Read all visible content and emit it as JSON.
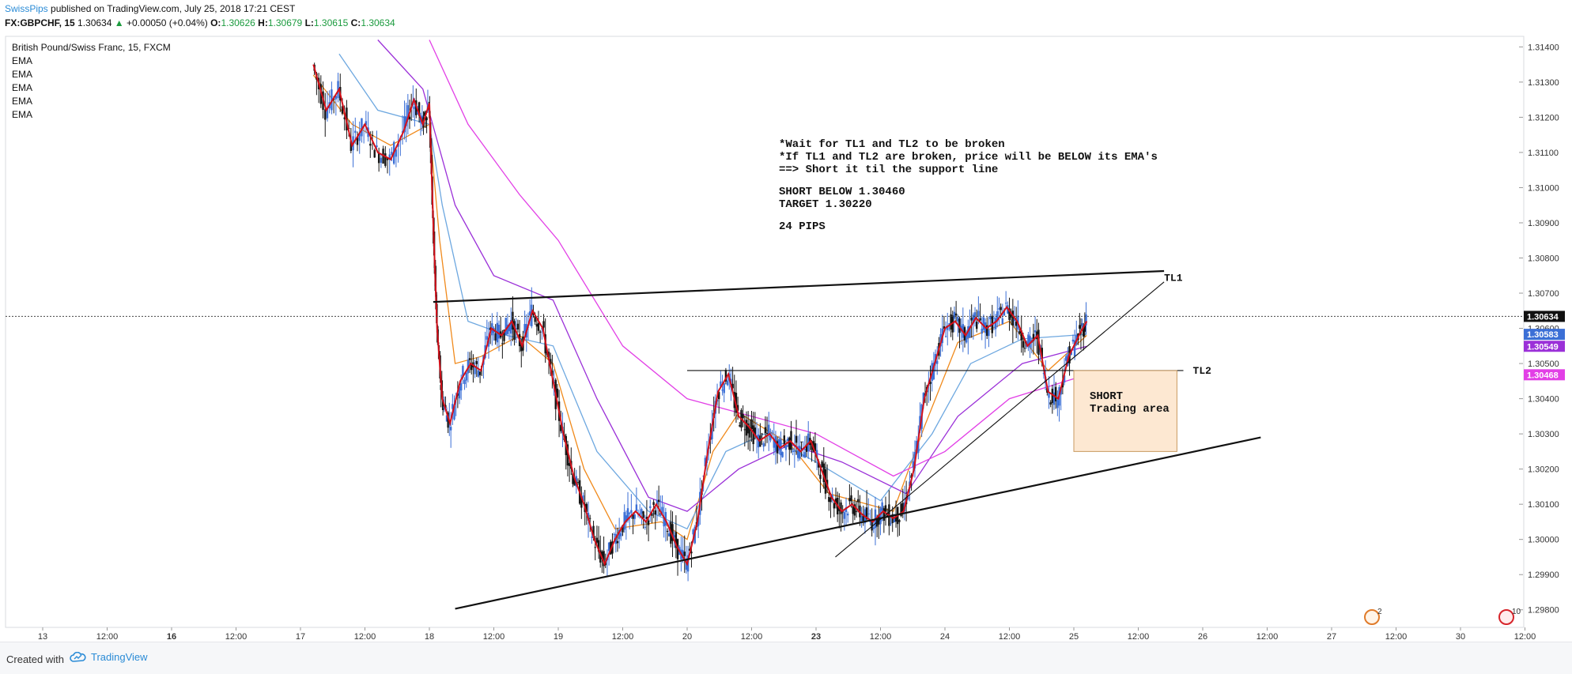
{
  "header": {
    "author": "SwissPips",
    "published_text": "published on TradingView.com, July 25, 2018 17:21 CEST",
    "symbol": "FX:GBPCHF, 15",
    "last_price": "1.30634",
    "change_arrow": "▲",
    "change": "+0.00050 (+0.04%)",
    "open_label": "O:",
    "open": "1.30626",
    "high_label": "H:",
    "high": "1.30679",
    "low_label": "L:",
    "low": "1.30615",
    "close_label": "C:",
    "close": "1.30634"
  },
  "legend": {
    "title": "British Pound/Swiss Franc, 15, FXCM",
    "indicators": [
      "EMA",
      "EMA",
      "EMA",
      "EMA",
      "EMA"
    ]
  },
  "annotation": {
    "lines": [
      "*Wait for TL1 and TL2 to be broken",
      "*If TL1 and TL2 are broken, price will be BELOW its EMA's",
      "==> Short it til the support line",
      "",
      "SHORT BELOW 1.30460",
      "TARGET 1.30220",
      "",
      "24 PIPS"
    ],
    "zone_label_1": "SHORT",
    "zone_label_2": "Trading area",
    "tl1_label": "TL1",
    "tl2_label": "TL2"
  },
  "footer": {
    "created_with": "Created with",
    "brand": "TradingView",
    "badge_count_1": "2",
    "badge_count_2": "10"
  },
  "colors": {
    "bull": "#3b6fd6",
    "bear": "#151515",
    "price_line": "#d4101a",
    "ema_orange": "#f08a1c",
    "ema_blue": "#6ea8e0",
    "ema_purple": "#9b30d8",
    "ema_magenta": "#e23fe6",
    "zone_fill": "#fde8d2",
    "zone_border": "#c99a60"
  },
  "chart_data": {
    "type": "candlestick",
    "symbol": "GBPCHF",
    "timeframe": "15",
    "x_tick_labels": [
      "13",
      "12:00",
      "16",
      "12:00",
      "17",
      "12:00",
      "18",
      "12:00",
      "19",
      "12:00",
      "20",
      "12:00",
      "23",
      "12:00",
      "24",
      "12:00",
      "25",
      "12:00",
      "26",
      "12:00",
      "27",
      "12:00",
      "30",
      "12:00"
    ],
    "x_tick_bold": [
      false,
      false,
      true,
      false,
      false,
      false,
      false,
      false,
      false,
      false,
      false,
      false,
      true,
      false,
      false,
      false,
      false,
      false,
      false,
      false,
      false,
      false,
      false,
      false
    ],
    "ylim": [
      1.2975,
      1.3143
    ],
    "y_ticks": [
      1.314,
      1.313,
      1.312,
      1.311,
      1.31,
      1.309,
      1.308,
      1.307,
      1.306,
      1.305,
      1.304,
      1.303,
      1.302,
      1.301,
      1.3,
      1.299,
      1.298
    ],
    "y_tick_labels": [
      "1.31400",
      "1.31300",
      "1.31200",
      "1.31100",
      "1.31000",
      "1.30900",
      "1.30800",
      "1.30700",
      "1.30600",
      "1.30500",
      "1.30400",
      "1.30300",
      "1.30200",
      "1.30100",
      "1.30000",
      "1.29900",
      "1.29800"
    ],
    "price_tags": [
      {
        "value": 1.30634,
        "label": "1.30634",
        "color": "#111111"
      },
      {
        "value": 1.30583,
        "label": "1.30583",
        "color": "#3b6fd6"
      },
      {
        "value": 1.30549,
        "label": "1.30549",
        "color": "#9b30d8"
      },
      {
        "value": 1.30468,
        "label": "1.30468",
        "color": "#e23fe6"
      }
    ],
    "close_series": [
      {
        "x": 17.1,
        "c": 1.3135
      },
      {
        "x": 17.2,
        "c": 1.3122
      },
      {
        "x": 17.3,
        "c": 1.3128
      },
      {
        "x": 17.4,
        "c": 1.3112
      },
      {
        "x": 17.5,
        "c": 1.3118
      },
      {
        "x": 17.6,
        "c": 1.311
      },
      {
        "x": 17.7,
        "c": 1.3108
      },
      {
        "x": 17.8,
        "c": 1.3116
      },
      {
        "x": 17.88,
        "c": 1.3125
      },
      {
        "x": 17.95,
        "c": 1.3118
      },
      {
        "x": 18.0,
        "c": 1.3124
      },
      {
        "x": 18.03,
        "c": 1.309
      },
      {
        "x": 18.06,
        "c": 1.306
      },
      {
        "x": 18.1,
        "c": 1.304
      },
      {
        "x": 18.16,
        "c": 1.3033
      },
      {
        "x": 18.24,
        "c": 1.3045
      },
      {
        "x": 18.32,
        "c": 1.305
      },
      {
        "x": 18.4,
        "c": 1.3048
      },
      {
        "x": 18.48,
        "c": 1.306
      },
      {
        "x": 18.56,
        "c": 1.3058
      },
      {
        "x": 18.64,
        "c": 1.3062
      },
      {
        "x": 18.72,
        "c": 1.3055
      },
      {
        "x": 18.8,
        "c": 1.3065
      },
      {
        "x": 18.88,
        "c": 1.306
      },
      {
        "x": 18.96,
        "c": 1.3045
      },
      {
        "x": 19.04,
        "c": 1.303
      },
      {
        "x": 19.12,
        "c": 1.3018
      },
      {
        "x": 19.2,
        "c": 1.301
      },
      {
        "x": 19.28,
        "c": 1.3
      },
      {
        "x": 19.36,
        "c": 1.2993
      },
      {
        "x": 19.44,
        "c": 1.3
      },
      {
        "x": 19.52,
        "c": 1.3005
      },
      {
        "x": 19.6,
        "c": 1.3008
      },
      {
        "x": 19.68,
        "c": 1.3005
      },
      {
        "x": 19.76,
        "c": 1.301
      },
      {
        "x": 19.84,
        "c": 1.3005
      },
      {
        "x": 19.92,
        "c": 1.2998
      },
      {
        "x": 20.0,
        "c": 1.2993
      },
      {
        "x": 20.08,
        "c": 1.3005
      },
      {
        "x": 20.16,
        "c": 1.3025
      },
      {
        "x": 20.24,
        "c": 1.3042
      },
      {
        "x": 20.32,
        "c": 1.3047
      },
      {
        "x": 20.4,
        "c": 1.3035
      },
      {
        "x": 20.48,
        "c": 1.3032
      },
      {
        "x": 20.56,
        "c": 1.3028
      },
      {
        "x": 20.64,
        "c": 1.303
      },
      {
        "x": 20.72,
        "c": 1.3026
      },
      {
        "x": 20.8,
        "c": 1.3028
      },
      {
        "x": 20.88,
        "c": 1.3025
      },
      {
        "x": 20.96,
        "c": 1.3028
      },
      {
        "x": 21.04,
        "c": 1.302
      },
      {
        "x": 21.12,
        "c": 1.3012
      },
      {
        "x": 21.2,
        "c": 1.3008
      },
      {
        "x": 21.28,
        "c": 1.301
      },
      {
        "x": 21.36,
        "c": 1.3007
      },
      {
        "x": 21.44,
        "c": 1.3005
      },
      {
        "x": 21.52,
        "c": 1.3008
      },
      {
        "x": 21.6,
        "c": 1.3006
      },
      {
        "x": 21.68,
        "c": 1.3008
      },
      {
        "x": 21.76,
        "c": 1.302
      },
      {
        "x": 21.84,
        "c": 1.304
      },
      {
        "x": 21.92,
        "c": 1.305
      },
      {
        "x": 22.0,
        "c": 1.306
      },
      {
        "x": 22.08,
        "c": 1.3062
      },
      {
        "x": 22.16,
        "c": 1.3058
      },
      {
        "x": 22.24,
        "c": 1.3063
      },
      {
        "x": 22.32,
        "c": 1.306
      },
      {
        "x": 22.4,
        "c": 1.3062
      },
      {
        "x": 22.48,
        "c": 1.3066
      },
      {
        "x": 22.56,
        "c": 1.3062
      },
      {
        "x": 22.64,
        "c": 1.3055
      },
      {
        "x": 22.72,
        "c": 1.3058
      },
      {
        "x": 22.8,
        "c": 1.3042
      },
      {
        "x": 22.88,
        "c": 1.304
      },
      {
        "x": 22.96,
        "c": 1.3052
      },
      {
        "x": 23.04,
        "c": 1.3058
      },
      {
        "x": 23.1,
        "c": 1.3062
      }
    ],
    "ema_series": [
      {
        "name": "",
        "color": "#f08a1c",
        "points": [
          {
            "x": 17.1,
            "y": 1.3132
          },
          {
            "x": 17.4,
            "y": 1.3118
          },
          {
            "x": 17.7,
            "y": 1.3112
          },
          {
            "x": 18.0,
            "y": 1.3118
          },
          {
            "x": 18.08,
            "y": 1.3085
          },
          {
            "x": 18.2,
            "y": 1.305
          },
          {
            "x": 18.4,
            "y": 1.3052
          },
          {
            "x": 18.7,
            "y": 1.3058
          },
          {
            "x": 18.96,
            "y": 1.305
          },
          {
            "x": 19.2,
            "y": 1.302
          },
          {
            "x": 19.44,
            "y": 1.3003
          },
          {
            "x": 19.8,
            "y": 1.3005
          },
          {
            "x": 20.0,
            "y": 1.3
          },
          {
            "x": 20.2,
            "y": 1.3025
          },
          {
            "x": 20.4,
            "y": 1.3036
          },
          {
            "x": 20.8,
            "y": 1.3027
          },
          {
            "x": 21.1,
            "y": 1.3013
          },
          {
            "x": 21.6,
            "y": 1.3008
          },
          {
            "x": 21.84,
            "y": 1.3032
          },
          {
            "x": 22.1,
            "y": 1.3056
          },
          {
            "x": 22.5,
            "y": 1.3062
          },
          {
            "x": 22.8,
            "y": 1.3048
          },
          {
            "x": 23.1,
            "y": 1.3058
          }
        ]
      },
      {
        "name": "",
        "color": "#6ea8e0",
        "points": [
          {
            "x": 17.3,
            "y": 1.3138
          },
          {
            "x": 17.6,
            "y": 1.3122
          },
          {
            "x": 18.0,
            "y": 1.3118
          },
          {
            "x": 18.1,
            "y": 1.3095
          },
          {
            "x": 18.3,
            "y": 1.3062
          },
          {
            "x": 18.6,
            "y": 1.3058
          },
          {
            "x": 18.96,
            "y": 1.3055
          },
          {
            "x": 19.3,
            "y": 1.3025
          },
          {
            "x": 19.7,
            "y": 1.3008
          },
          {
            "x": 20.0,
            "y": 1.3003
          },
          {
            "x": 20.3,
            "y": 1.3025
          },
          {
            "x": 20.6,
            "y": 1.303
          },
          {
            "x": 21.0,
            "y": 1.3022
          },
          {
            "x": 21.5,
            "y": 1.3011
          },
          {
            "x": 21.9,
            "y": 1.303
          },
          {
            "x": 22.2,
            "y": 1.305
          },
          {
            "x": 22.6,
            "y": 1.3057
          },
          {
            "x": 23.1,
            "y": 1.30583
          }
        ]
      },
      {
        "name": "",
        "color": "#9b30d8",
        "points": [
          {
            "x": 17.6,
            "y": 1.3142
          },
          {
            "x": 17.95,
            "y": 1.3128
          },
          {
            "x": 18.2,
            "y": 1.3095
          },
          {
            "x": 18.5,
            "y": 1.3075
          },
          {
            "x": 18.96,
            "y": 1.3068
          },
          {
            "x": 19.3,
            "y": 1.304
          },
          {
            "x": 19.7,
            "y": 1.3012
          },
          {
            "x": 20.0,
            "y": 1.3008
          },
          {
            "x": 20.4,
            "y": 1.302
          },
          {
            "x": 20.8,
            "y": 1.3027
          },
          {
            "x": 21.2,
            "y": 1.3022
          },
          {
            "x": 21.7,
            "y": 1.3013
          },
          {
            "x": 22.1,
            "y": 1.3035
          },
          {
            "x": 22.6,
            "y": 1.305
          },
          {
            "x": 23.1,
            "y": 1.30549
          }
        ]
      },
      {
        "name": "",
        "color": "#e23fe6",
        "points": [
          {
            "x": 18.0,
            "y": 1.3142
          },
          {
            "x": 18.3,
            "y": 1.3118
          },
          {
            "x": 18.7,
            "y": 1.3098
          },
          {
            "x": 19.0,
            "y": 1.3085
          },
          {
            "x": 19.5,
            "y": 1.3055
          },
          {
            "x": 20.0,
            "y": 1.304
          },
          {
            "x": 20.4,
            "y": 1.3036
          },
          {
            "x": 21.0,
            "y": 1.303
          },
          {
            "x": 21.6,
            "y": 1.3018
          },
          {
            "x": 22.0,
            "y": 1.3025
          },
          {
            "x": 22.5,
            "y": 1.304
          },
          {
            "x": 23.1,
            "y": 1.30468
          }
        ]
      }
    ],
    "drawings": [
      {
        "label": "TL1",
        "role": "resistance",
        "x1": 18.03,
        "y1": 1.30675,
        "x2": 23.7,
        "y2": 1.30763,
        "weight": "bold"
      },
      {
        "label": "",
        "role": "rising-trend",
        "x1": 21.15,
        "y1": 1.2995,
        "x2": 23.7,
        "y2": 1.30732,
        "weight": "thin"
      },
      {
        "label": "TL2",
        "role": "horizontal",
        "x1": 20.0,
        "y1": 1.3048,
        "x2": 23.85,
        "y2": 1.3048,
        "weight": "thin"
      },
      {
        "label": "",
        "role": "support",
        "x1": 18.2,
        "y1": 1.29803,
        "x2": 24.45,
        "y2": 1.3029,
        "weight": "bold"
      }
    ],
    "zone": {
      "x1": 23.0,
      "x2": 23.8,
      "y_top": 1.3048,
      "y_bottom": 1.3025
    }
  }
}
